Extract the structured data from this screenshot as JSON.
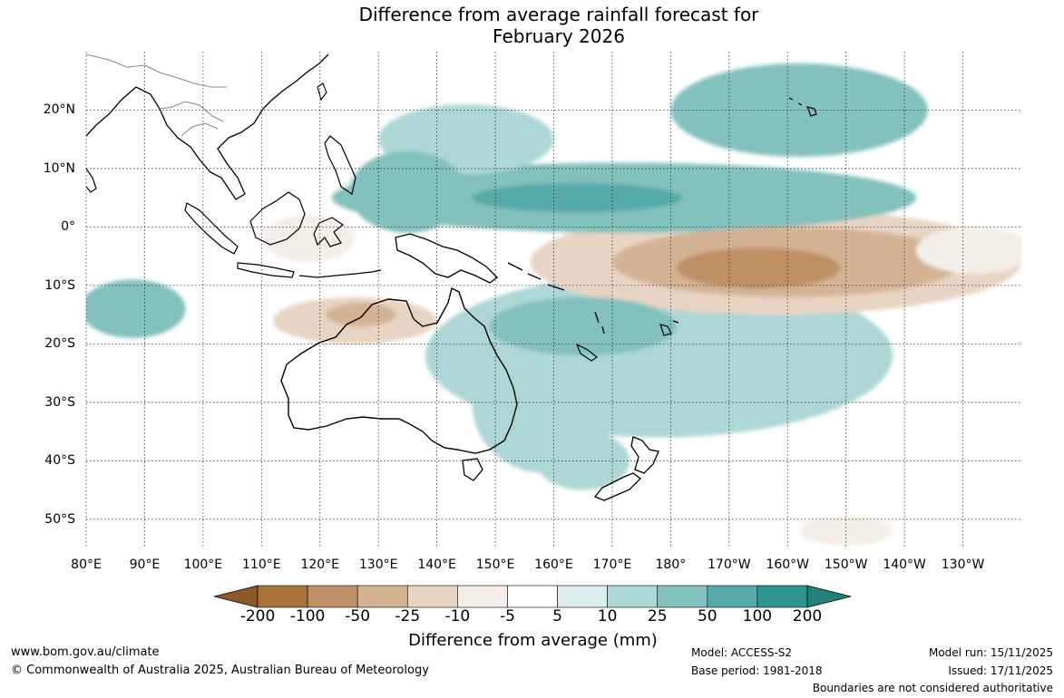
{
  "title": "Difference from average rainfall forecast for\nFebruary 2026",
  "map": {
    "projection": "equirectangular",
    "lon_range_degE": [
      80,
      240
    ],
    "lat_range": [
      -55,
      30
    ],
    "lat_labels": [
      "20°N",
      "10°N",
      "0°",
      "10°S",
      "20°S",
      "30°S",
      "40°S",
      "50°S"
    ],
    "lat_values": [
      20,
      10,
      0,
      -10,
      -20,
      -30,
      -40,
      -50
    ],
    "lon_labels": [
      "80°E",
      "90°E",
      "100°E",
      "110°E",
      "120°E",
      "130°E",
      "140°E",
      "150°E",
      "160°E",
      "170°E",
      "180°",
      "170°W",
      "160°W",
      "150°W",
      "140°W",
      "130°W"
    ],
    "lon_values": [
      80,
      90,
      100,
      110,
      120,
      130,
      140,
      150,
      160,
      170,
      180,
      190,
      200,
      210,
      220,
      230
    ],
    "anomaly_features": [
      {
        "name": "equatorial-central-pacific-dry",
        "lon": 198,
        "lat": -6,
        "rlon": 42,
        "rlat": 9,
        "level": -25
      },
      {
        "name": "central-pacific-dry-inner",
        "lon": 200,
        "lat": -6,
        "rlon": 30,
        "rlat": 6,
        "level": -50
      },
      {
        "name": "central-pacific-dry-core",
        "lon": 195,
        "lat": -7,
        "rlon": 14,
        "rlat": 3.5,
        "level": -100
      },
      {
        "name": "north-pacific-wet-band",
        "lon": 172,
        "lat": 5,
        "rlon": 50,
        "rlat": 6,
        "level": 25
      },
      {
        "name": "north-pacific-wet-core",
        "lon": 164,
        "lat": 5,
        "rlon": 18,
        "rlat": 2.5,
        "level": 50
      },
      {
        "name": "hawaii-wet",
        "lon": 202,
        "lat": 20,
        "rlon": 22,
        "rlat": 8,
        "level": 25
      },
      {
        "name": "spcz-wet",
        "lon": 178,
        "lat": -22,
        "rlon": 40,
        "rlat": 14,
        "level": 10
      },
      {
        "name": "coral-sea-wet",
        "lon": 165,
        "lat": -17,
        "rlon": 16,
        "rlat": 5,
        "level": 25
      },
      {
        "name": "east-australia-wet",
        "lon": 158,
        "lat": -30,
        "rlon": 12,
        "rlat": 12,
        "level": 10
      },
      {
        "name": "tasman-wet",
        "lon": 165,
        "lat": -40,
        "rlon": 8,
        "rlat": 5,
        "level": 10
      },
      {
        "name": "north-australia-dry",
        "lon": 126,
        "lat": -16,
        "rlon": 14,
        "rlat": 4,
        "level": -25
      },
      {
        "name": "timor-dry-core",
        "lon": 127,
        "lat": -15,
        "rlon": 6,
        "rlat": 2,
        "level": -50
      },
      {
        "name": "indian-ocean-wet",
        "lon": 88,
        "lat": -14,
        "rlon": 9,
        "rlat": 5,
        "level": 25
      },
      {
        "name": "maritime-continent-wet",
        "lon": 135,
        "lat": 6,
        "rlon": 10,
        "rlat": 7,
        "level": 25
      },
      {
        "name": "philippine-sea-wet",
        "lon": 145,
        "lat": 15,
        "rlon": 15,
        "rlat": 6,
        "level": 10
      },
      {
        "name": "south-china-sea-dry",
        "lon": 118,
        "lat": -2,
        "rlon": 8,
        "rlat": 4,
        "level": -10
      },
      {
        "name": "east-pacific-dry",
        "lon": 232,
        "lat": -4,
        "rlon": 10,
        "rlat": 4,
        "level": -10
      },
      {
        "name": "southern-ocean-dry",
        "lon": 210,
        "lat": -52,
        "rlon": 8,
        "rlat": 2.5,
        "level": -10
      }
    ]
  },
  "colorbar": {
    "boundaries": [
      "-200",
      "-100",
      "-50",
      "-25",
      "-10",
      "-5",
      "5",
      "10",
      "25",
      "50",
      "100",
      "200"
    ],
    "colors": [
      "#a8733b",
      "#c09065",
      "#d4b294",
      "#e8d4c2",
      "#f4eee8",
      "#ffffff",
      "#dbedec",
      "#add7d5",
      "#83c1be",
      "#57aaa8",
      "#2e9590"
    ],
    "under_color": "#8b5a2b",
    "over_color": "#21817b",
    "label": "Difference from average (mm)"
  },
  "footer": {
    "website": "www.bom.gov.au/climate",
    "copyright": "© Commonwealth of Australia 2025, Australian Bureau of Meteorology",
    "model": "Model: ACCESS-S2",
    "base_period": "Base period: 1981-2018",
    "model_run": "Model run: 15/11/2025",
    "issued": "Issued: 17/11/2025",
    "disclaimer": "Boundaries are not considered authoritative"
  }
}
